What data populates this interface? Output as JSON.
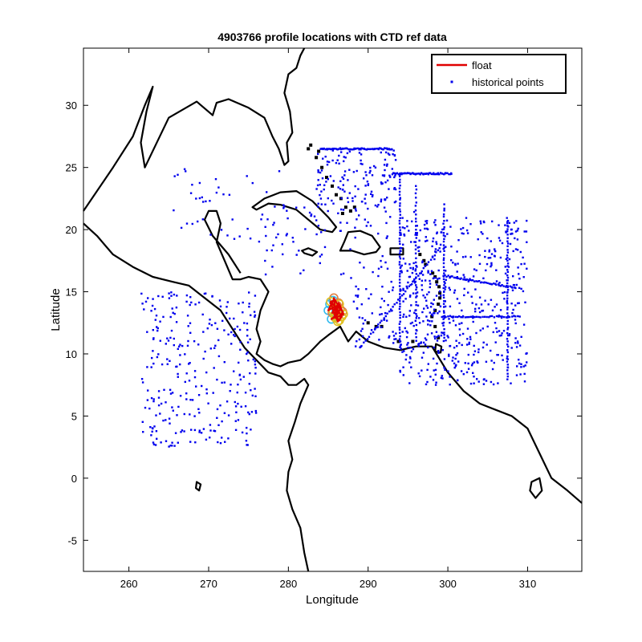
{
  "chart_data": {
    "type": "scatter",
    "title": "4903766 profile locations with CTD ref data",
    "xlabel": "Longitude",
    "ylabel": "Latitude",
    "xlim": [
      254.3,
      316.8
    ],
    "ylim": [
      -7.5,
      34.6
    ],
    "xticks": [
      260,
      270,
      280,
      290,
      300,
      310
    ],
    "yticks": [
      -5,
      0,
      5,
      10,
      15,
      20,
      25,
      30
    ],
    "grid": false,
    "legend": {
      "placement": "top-right",
      "entries": [
        {
          "label": "float",
          "color": "#e00000",
          "marker": "line"
        },
        {
          "label": "historical points",
          "color": "#0000ee",
          "marker": "dot"
        }
      ]
    },
    "colors": {
      "coast": "#000000",
      "float": "#e00000",
      "historical": "#0000ee",
      "profile_ring_early": "#33bbee",
      "profile_ring_late": "#e0c020"
    },
    "float_track": {
      "lon": [
        285.2,
        285.6,
        285.0,
        285.8,
        286.2,
        285.4,
        286.0,
        285.7,
        286.5,
        285.9,
        286.3,
        285.5,
        286.1,
        286.8,
        286.4,
        285.8,
        285.3,
        286.0,
        286.7,
        286.2,
        285.6,
        286.4,
        286.9,
        285.9
      ],
      "lat": [
        14.0,
        14.3,
        13.5,
        13.8,
        13.2,
        12.8,
        13.0,
        14.5,
        13.6,
        12.9,
        14.1,
        13.3,
        13.9,
        13.4,
        12.7,
        13.1,
        14.2,
        13.7,
        13.0,
        12.6,
        13.5,
        14.0,
        13.2,
        12.9
      ]
    },
    "historical_clusters": [
      {
        "region": "eastern-pacific",
        "lon": [
          261.5,
          276.0
        ],
        "lat": [
          2.5,
          15.0
        ],
        "n": 290
      },
      {
        "region": "gulf-of-mexico",
        "lon": [
          265.5,
          280.0
        ],
        "lat": [
          19.0,
          25.0
        ],
        "n": 45
      },
      {
        "region": "caribbean-north",
        "lon": [
          277.0,
          299.0
        ],
        "lat": [
          16.0,
          22.0
        ],
        "n": 90
      },
      {
        "region": "bahamas",
        "lon": [
          283.5,
          293.5
        ],
        "lat": [
          21.5,
          26.5
        ],
        "n": 140
      },
      {
        "region": "western-atlantic",
        "lon": [
          294.0,
          310.0
        ],
        "lat": [
          7.5,
          21.0
        ],
        "n": 480
      },
      {
        "region": "lesser-antilles",
        "lon": [
          288.0,
          300.0
        ],
        "lat": [
          10.5,
          17.0
        ],
        "n": 110
      }
    ],
    "historical_lines": [
      {
        "lon": [
          284.0,
          293.0
        ],
        "lat": [
          26.5,
          26.5
        ],
        "n": 70
      },
      {
        "lon": [
          293.0,
          300.5
        ],
        "lat": [
          24.5,
          24.5
        ],
        "n": 60
      },
      {
        "lon": [
          294.0,
          294.0
        ],
        "lat": [
          10.5,
          24.5
        ],
        "n": 60
      },
      {
        "lon": [
          299.5,
          299.5
        ],
        "lat": [
          11.0,
          22.0
        ],
        "n": 45
      },
      {
        "lon": [
          307.5,
          307.5
        ],
        "lat": [
          8.0,
          20.5
        ],
        "n": 55
      },
      {
        "lon": [
          299.5,
          308.5
        ],
        "lat": [
          16.3,
          15.3
        ],
        "n": 50
      },
      {
        "lon": [
          299.5,
          309.0
        ],
        "lat": [
          13.0,
          13.0
        ],
        "n": 40
      },
      {
        "lon": [
          289.0,
          299.0
        ],
        "lat": [
          10.5,
          18.5
        ],
        "n": 45
      },
      {
        "lon": [
          296.0,
          296.0
        ],
        "lat": [
          11.0,
          23.5
        ],
        "n": 40
      }
    ],
    "coastlines": [
      {
        "name": "north-america-gulf",
        "closed": false,
        "lon": [
          254.3,
          258.0,
          260.5,
          262.0,
          263.0,
          262.2,
          261.5,
          262.0,
          265.0,
          268.5,
          270.5,
          271.0,
          272.5,
          275.0,
          277.0,
          278.0,
          278.8,
          279.5,
          280.0,
          279.8,
          280.5,
          280.2,
          279.5,
          280.0,
          281.0,
          281.5,
          282.0
        ],
        "lat": [
          21.5,
          25.0,
          27.5,
          30.0,
          31.5,
          29.5,
          27.0,
          25.0,
          29.0,
          30.3,
          29.2,
          30.2,
          30.5,
          29.8,
          29.0,
          27.5,
          26.5,
          25.2,
          25.5,
          27.0,
          27.8,
          29.5,
          31.0,
          32.5,
          33.0,
          34.0,
          34.6
        ]
      },
      {
        "name": "central-america-pacific",
        "closed": false,
        "lon": [
          254.3,
          256.0,
          258.0,
          260.5,
          263.0,
          265.5,
          267.5,
          269.5,
          271.5,
          273.0,
          274.5,
          276.0,
          277.5,
          279.0,
          280.0,
          281.0,
          282.0,
          282.5,
          281.5,
          280.8,
          280.0,
          280.5,
          280.0,
          279.8,
          280.5,
          281.5,
          282.0,
          282.5
        ],
        "lat": [
          20.5,
          19.5,
          18.0,
          17.0,
          16.2,
          15.8,
          15.5,
          14.5,
          13.5,
          12.0,
          10.5,
          9.5,
          8.5,
          8.2,
          7.5,
          7.5,
          8.0,
          7.5,
          6.0,
          4.5,
          3.0,
          1.5,
          0.5,
          -1.0,
          -2.5,
          -4.0,
          -6.0,
          -7.5
        ]
      },
      {
        "name": "yucatan-mosquitia",
        "closed": false,
        "lon": [
          274.0,
          272.5,
          270.5,
          269.5,
          270.0,
          271.0,
          271.5,
          271.0,
          272.0,
          273.0,
          274.0,
          275.0,
          276.5,
          277.5,
          276.5,
          276.0,
          276.5,
          276.0,
          277.0,
          278.0,
          279.0,
          280.0
        ],
        "lat": [
          16.5,
          18.0,
          19.5,
          20.8,
          21.5,
          21.5,
          20.5,
          19.0,
          17.5,
          16.0,
          16.0,
          16.2,
          16.0,
          15.0,
          13.5,
          12.0,
          11.0,
          10.0,
          9.5,
          9.2,
          9.0,
          9.3
        ]
      },
      {
        "name": "south-america-north",
        "closed": false,
        "lon": [
          280.0,
          281.5,
          282.5,
          284.0,
          285.0,
          286.5,
          287.5,
          288.5,
          290.0,
          292.0,
          294.0,
          296.0,
          298.0,
          300.0,
          302.0,
          304.0,
          306.0,
          308.0,
          310.0,
          311.5,
          313.0,
          315.0,
          316.8
        ],
        "lat": [
          9.3,
          9.5,
          10.0,
          11.0,
          11.5,
          12.2,
          11.0,
          11.8,
          11.0,
          10.5,
          10.3,
          10.6,
          10.6,
          8.5,
          7.0,
          6.0,
          5.5,
          5.0,
          4.0,
          2.0,
          0.0,
          -1.0,
          -2.0
        ]
      },
      {
        "name": "cuba",
        "closed": true,
        "lon": [
          275.5,
          277.0,
          279.0,
          281.0,
          283.0,
          285.0,
          286.0,
          285.5,
          284.0,
          282.5,
          281.0,
          279.0,
          277.5,
          276.0
        ],
        "lat": [
          21.8,
          22.5,
          23.0,
          23.1,
          22.3,
          21.0,
          20.2,
          19.8,
          20.0,
          20.8,
          21.6,
          22.0,
          22.1,
          21.6
        ]
      },
      {
        "name": "hispaniola",
        "closed": true,
        "lon": [
          287.5,
          289.0,
          290.5,
          291.5,
          291.0,
          289.5,
          288.0,
          286.5,
          287.0
        ],
        "lat": [
          19.8,
          19.9,
          19.5,
          18.6,
          18.2,
          18.0,
          18.3,
          18.3,
          19.0
        ]
      },
      {
        "name": "jamaica",
        "closed": true,
        "lon": [
          281.7,
          282.5,
          283.6,
          283.0,
          282.0
        ],
        "lat": [
          18.3,
          18.5,
          18.2,
          17.9,
          18.1
        ]
      },
      {
        "name": "puerto-rico",
        "closed": true,
        "lon": [
          292.8,
          294.4,
          294.4,
          292.8
        ],
        "lat": [
          18.5,
          18.5,
          18.0,
          18.0
        ]
      },
      {
        "name": "trinidad",
        "closed": true,
        "lon": [
          298.5,
          299.2,
          299.1,
          298.4
        ],
        "lat": [
          10.8,
          10.6,
          10.1,
          10.2
        ]
      },
      {
        "name": "galapagos",
        "closed": true,
        "lon": [
          268.5,
          269.0,
          268.8,
          268.4
        ],
        "lat": [
          -0.3,
          -0.5,
          -1.0,
          -0.8
        ]
      },
      {
        "name": "marajo",
        "closed": true,
        "lon": [
          310.5,
          311.5,
          311.8,
          311.0,
          310.3
        ],
        "lat": [
          -0.3,
          0.0,
          -1.0,
          -1.6,
          -1.0
        ]
      }
    ],
    "islands": {
      "bahamas": {
        "lon": [
          282.5,
          283.5,
          284.2,
          284.8,
          285.5,
          286.0,
          286.6,
          287.2,
          286.8,
          287.8,
          288.3,
          282.8,
          283.8
        ],
        "lat": [
          26.5,
          25.8,
          25.0,
          24.2,
          23.5,
          22.8,
          22.5,
          21.8,
          21.3,
          21.5,
          21.8,
          26.8,
          26.3
        ]
      },
      "lesser-antilles": {
        "lon": [
          296.5,
          297.0,
          297.2,
          298.1,
          298.4,
          298.6,
          298.9,
          299.0,
          299.0,
          298.8,
          298.4,
          298.0,
          298.4,
          298.8
        ],
        "lat": [
          18.0,
          17.5,
          17.2,
          16.5,
          16.2,
          15.8,
          15.4,
          14.9,
          14.5,
          14.0,
          13.5,
          13.0,
          12.2,
          11.3
        ]
      },
      "abc-islands": {
        "lon": [
          290.0,
          291.0,
          291.7,
          293.8,
          295.6
        ],
        "lat": [
          12.5,
          12.2,
          12.2,
          11.0,
          11.0
        ]
      }
    }
  }
}
